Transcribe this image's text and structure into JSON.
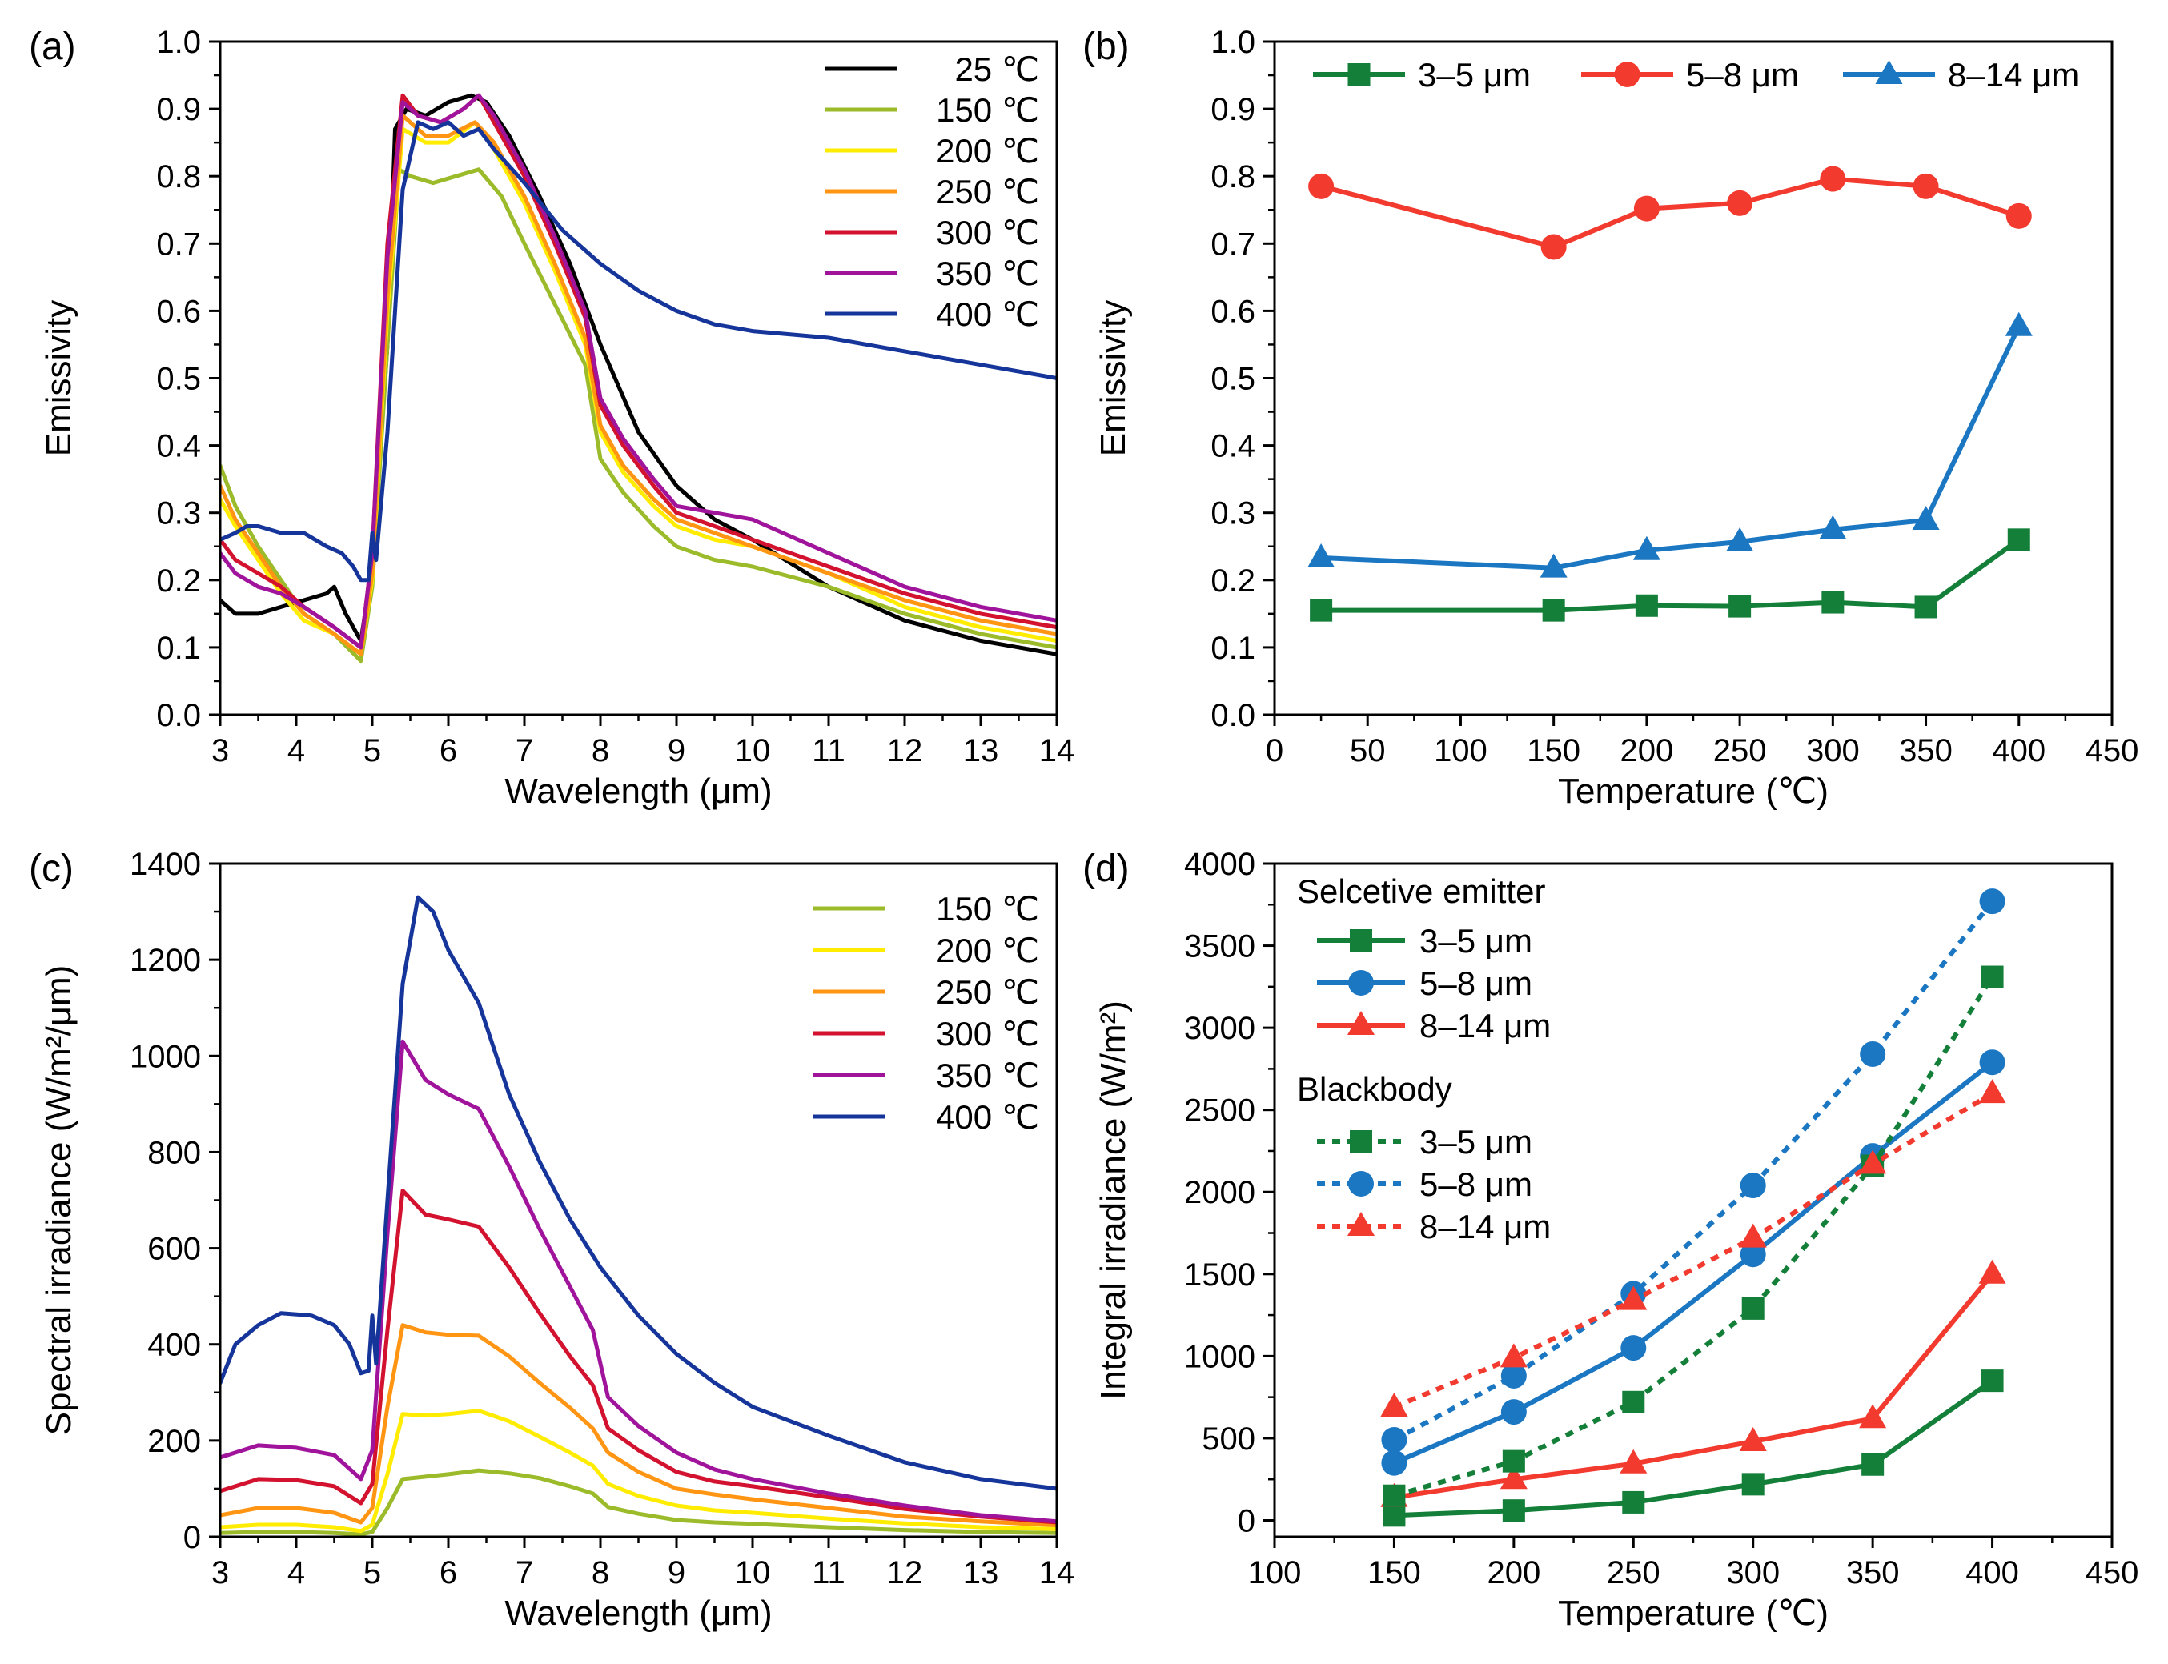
{
  "figure": {
    "panels": [
      "a",
      "b",
      "c",
      "d"
    ]
  },
  "chart_data": [
    {
      "id": "a",
      "panel_label": "(a)",
      "type": "line",
      "title": "",
      "xlabel": "Wavelength (μm)",
      "ylabel": "Emissivity",
      "xlim": [
        3,
        14
      ],
      "ylim": [
        0,
        1.0
      ],
      "xticks": [
        "3",
        "4",
        "5",
        "6",
        "7",
        "8",
        "9",
        "10",
        "11",
        "12",
        "13",
        "14"
      ],
      "yticks": [
        "0.0",
        "0.1",
        "0.2",
        "0.3",
        "0.4",
        "0.5",
        "0.6",
        "0.7",
        "0.8",
        "0.9",
        "1.0"
      ],
      "legend_position": "top-right",
      "series": [
        {
          "name": "25 ℃",
          "color": "#000000",
          "x": [
            3.0,
            3.2,
            3.5,
            3.8,
            4.1,
            4.4,
            4.5,
            4.65,
            4.85,
            5.0,
            5.2,
            5.3,
            5.45,
            5.7,
            6.0,
            6.3,
            6.5,
            6.8,
            7.2,
            7.6,
            8.0,
            8.5,
            9.0,
            9.5,
            10.0,
            11.0,
            12.0,
            13.0,
            14.0
          ],
          "y": [
            0.17,
            0.15,
            0.15,
            0.16,
            0.17,
            0.18,
            0.19,
            0.15,
            0.11,
            0.22,
            0.55,
            0.87,
            0.9,
            0.89,
            0.91,
            0.92,
            0.91,
            0.86,
            0.77,
            0.67,
            0.55,
            0.42,
            0.34,
            0.29,
            0.26,
            0.19,
            0.14,
            0.11,
            0.09
          ]
        },
        {
          "name": "150 ℃",
          "color": "#9cbb2a",
          "x": [
            3.0,
            3.2,
            3.5,
            3.8,
            4.1,
            4.5,
            4.85,
            5.0,
            5.2,
            5.35,
            5.5,
            5.8,
            6.1,
            6.4,
            6.7,
            7.0,
            7.4,
            7.8,
            8.0,
            8.3,
            8.7,
            9.0,
            9.5,
            10.0,
            11.0,
            12.0,
            13.0,
            14.0
          ],
          "y": [
            0.37,
            0.31,
            0.25,
            0.2,
            0.15,
            0.12,
            0.08,
            0.19,
            0.55,
            0.81,
            0.8,
            0.79,
            0.8,
            0.81,
            0.77,
            0.7,
            0.61,
            0.52,
            0.38,
            0.33,
            0.28,
            0.25,
            0.23,
            0.22,
            0.19,
            0.15,
            0.12,
            0.1
          ]
        },
        {
          "name": "200 ℃",
          "color": "#ffec00",
          "x": [
            3.0,
            3.2,
            3.5,
            3.8,
            4.1,
            4.5,
            4.85,
            5.0,
            5.2,
            5.4,
            5.7,
            6.0,
            6.35,
            6.6,
            7.0,
            7.4,
            7.8,
            8.0,
            8.3,
            8.7,
            9.0,
            9.5,
            10.0,
            11.0,
            12.0,
            13.0,
            14.0
          ],
          "y": [
            0.32,
            0.28,
            0.23,
            0.18,
            0.14,
            0.12,
            0.09,
            0.2,
            0.6,
            0.87,
            0.85,
            0.85,
            0.88,
            0.84,
            0.76,
            0.66,
            0.55,
            0.42,
            0.36,
            0.31,
            0.28,
            0.26,
            0.25,
            0.21,
            0.16,
            0.13,
            0.11
          ]
        },
        {
          "name": "250 ℃",
          "color": "#ff9512",
          "x": [
            3.0,
            3.2,
            3.5,
            3.8,
            4.1,
            4.5,
            4.85,
            5.0,
            5.2,
            5.4,
            5.7,
            6.0,
            6.35,
            6.6,
            7.0,
            7.4,
            7.8,
            8.0,
            8.3,
            8.7,
            9.0,
            9.5,
            10.0,
            11.0,
            12.0,
            13.0,
            14.0
          ],
          "y": [
            0.34,
            0.29,
            0.24,
            0.19,
            0.15,
            0.12,
            0.09,
            0.21,
            0.62,
            0.89,
            0.86,
            0.86,
            0.88,
            0.85,
            0.77,
            0.67,
            0.56,
            0.43,
            0.37,
            0.32,
            0.29,
            0.27,
            0.25,
            0.21,
            0.17,
            0.14,
            0.12
          ]
        },
        {
          "name": "300 ℃",
          "color": "#d2122e",
          "x": [
            3.0,
            3.2,
            3.5,
            3.8,
            4.1,
            4.5,
            4.85,
            5.0,
            5.2,
            5.4,
            5.6,
            5.9,
            6.2,
            6.4,
            6.6,
            7.0,
            7.4,
            7.8,
            8.0,
            8.3,
            8.7,
            9.0,
            9.5,
            10.0,
            11.0,
            12.0,
            13.0,
            14.0
          ],
          "y": [
            0.26,
            0.23,
            0.21,
            0.19,
            0.16,
            0.13,
            0.1,
            0.24,
            0.7,
            0.92,
            0.89,
            0.88,
            0.9,
            0.92,
            0.88,
            0.8,
            0.7,
            0.59,
            0.46,
            0.4,
            0.34,
            0.3,
            0.28,
            0.26,
            0.22,
            0.18,
            0.15,
            0.13
          ]
        },
        {
          "name": "350 ℃",
          "color": "#a0149c",
          "x": [
            3.0,
            3.2,
            3.5,
            3.8,
            4.1,
            4.5,
            4.85,
            5.0,
            5.2,
            5.4,
            5.6,
            5.9,
            6.2,
            6.4,
            6.6,
            7.0,
            7.4,
            7.8,
            8.0,
            8.3,
            8.7,
            9.0,
            9.5,
            10.0,
            11.0,
            12.0,
            13.0,
            14.0
          ],
          "y": [
            0.24,
            0.21,
            0.19,
            0.18,
            0.16,
            0.13,
            0.1,
            0.24,
            0.68,
            0.91,
            0.89,
            0.88,
            0.9,
            0.92,
            0.89,
            0.81,
            0.71,
            0.6,
            0.47,
            0.41,
            0.35,
            0.31,
            0.3,
            0.29,
            0.24,
            0.19,
            0.16,
            0.14
          ]
        },
        {
          "name": "400 ℃",
          "color": "#16359a",
          "x": [
            3.0,
            3.2,
            3.35,
            3.5,
            3.8,
            4.1,
            4.4,
            4.6,
            4.75,
            4.85,
            4.95,
            5.0,
            5.05,
            5.2,
            5.4,
            5.6,
            5.8,
            6.0,
            6.2,
            6.4,
            6.6,
            7.0,
            7.5,
            8.0,
            8.5,
            9.0,
            9.5,
            10.0,
            11.0,
            12.0,
            12.5,
            13.0,
            13.5,
            14.0
          ],
          "y": [
            0.26,
            0.27,
            0.28,
            0.28,
            0.27,
            0.27,
            0.25,
            0.24,
            0.22,
            0.2,
            0.2,
            0.27,
            0.23,
            0.42,
            0.78,
            0.88,
            0.87,
            0.88,
            0.86,
            0.87,
            0.84,
            0.79,
            0.72,
            0.67,
            0.63,
            0.6,
            0.58,
            0.57,
            0.56,
            0.54,
            0.53,
            0.52,
            0.51,
            0.5
          ]
        }
      ]
    },
    {
      "id": "b",
      "panel_label": "(b)",
      "type": "line",
      "title": "",
      "xlabel": "Temperature (℃)",
      "ylabel": "Emissivity",
      "xlim": [
        0,
        450
      ],
      "ylim": [
        0,
        1.0
      ],
      "xticks": [
        "0",
        "50",
        "100",
        "150",
        "200",
        "250",
        "300",
        "350",
        "400",
        "450"
      ],
      "yticks": [
        "0.0",
        "0.1",
        "0.2",
        "0.3",
        "0.4",
        "0.5",
        "0.6",
        "0.7",
        "0.8",
        "0.9",
        "1.0"
      ],
      "legend_position": "top (horizontal)",
      "x": [
        25,
        150,
        200,
        250,
        300,
        350,
        400
      ],
      "series": [
        {
          "name": "3–5 μm",
          "color": "#137f38",
          "marker": "square",
          "values": [
            0.155,
            0.155,
            0.162,
            0.161,
            0.167,
            0.16,
            0.26
          ]
        },
        {
          "name": "5–8 μm",
          "color": "#f23a2f",
          "marker": "circle",
          "values": [
            0.785,
            0.695,
            0.752,
            0.76,
            0.796,
            0.785,
            0.741
          ]
        },
        {
          "name": "8–14 μm",
          "color": "#1c77c3",
          "marker": "triangle",
          "values": [
            0.233,
            0.218,
            0.244,
            0.257,
            0.275,
            0.289,
            0.577
          ]
        }
      ]
    },
    {
      "id": "c",
      "panel_label": "(c)",
      "type": "line",
      "title": "",
      "xlabel": "Wavelength (μm)",
      "ylabel": "Spectral irradiance (W/m²/μm)",
      "xlim": [
        3,
        14
      ],
      "ylim": [
        0,
        1400
      ],
      "xticks": [
        "3",
        "4",
        "5",
        "6",
        "7",
        "8",
        "9",
        "10",
        "11",
        "12",
        "13",
        "14"
      ],
      "yticks": [
        "0",
        "200",
        "400",
        "600",
        "800",
        "1000",
        "1200",
        "1400"
      ],
      "legend_position": "top-right",
      "series": [
        {
          "name": "150 ℃",
          "color": "#9cbb2a",
          "x": [
            3.0,
            3.5,
            4.0,
            4.5,
            4.85,
            5.0,
            5.2,
            5.4,
            5.7,
            6.0,
            6.4,
            6.8,
            7.2,
            7.6,
            7.9,
            8.1,
            8.5,
            9.0,
            9.5,
            10.0,
            11.0,
            12.0,
            13.0,
            14.0
          ],
          "y": [
            8,
            10,
            10,
            8,
            5,
            10,
            60,
            120,
            125,
            130,
            138,
            132,
            122,
            105,
            90,
            62,
            48,
            35,
            30,
            27,
            20,
            14,
            10,
            8
          ]
        },
        {
          "name": "200 ℃",
          "color": "#ffec00",
          "x": [
            3.0,
            3.5,
            4.0,
            4.5,
            4.85,
            5.0,
            5.2,
            5.4,
            5.7,
            6.0,
            6.4,
            6.8,
            7.2,
            7.6,
            7.9,
            8.1,
            8.5,
            9.0,
            9.5,
            10.0,
            11.0,
            12.0,
            13.0,
            14.0
          ],
          "y": [
            20,
            25,
            25,
            20,
            12,
            25,
            130,
            255,
            252,
            255,
            262,
            240,
            208,
            175,
            148,
            110,
            85,
            65,
            55,
            50,
            38,
            28,
            20,
            16
          ]
        },
        {
          "name": "250 ℃",
          "color": "#ff9512",
          "x": [
            3.0,
            3.5,
            4.0,
            4.5,
            4.85,
            5.0,
            5.2,
            5.4,
            5.7,
            6.0,
            6.4,
            6.8,
            7.2,
            7.6,
            7.9,
            8.1,
            8.5,
            9.0,
            9.5,
            10.0,
            11.0,
            12.0,
            13.0,
            14.0
          ],
          "y": [
            45,
            60,
            60,
            50,
            30,
            60,
            270,
            440,
            425,
            420,
            418,
            375,
            320,
            268,
            225,
            175,
            135,
            100,
            88,
            78,
            60,
            42,
            32,
            24
          ]
        },
        {
          "name": "300 ℃",
          "color": "#d2122e",
          "x": [
            3.0,
            3.5,
            4.0,
            4.5,
            4.85,
            5.0,
            5.2,
            5.4,
            5.7,
            6.0,
            6.4,
            6.8,
            7.2,
            7.6,
            7.9,
            8.1,
            8.5,
            9.0,
            9.5,
            10.0,
            11.0,
            12.0,
            13.0,
            14.0
          ],
          "y": [
            95,
            120,
            118,
            105,
            70,
            110,
            430,
            720,
            670,
            660,
            645,
            560,
            465,
            375,
            315,
            225,
            180,
            135,
            115,
            105,
            82,
            58,
            42,
            30
          ]
        },
        {
          "name": "350 ℃",
          "color": "#a0149c",
          "x": [
            3.0,
            3.5,
            4.0,
            4.5,
            4.85,
            5.0,
            5.2,
            5.4,
            5.7,
            6.0,
            6.4,
            6.8,
            7.2,
            7.6,
            7.9,
            8.1,
            8.5,
            9.0,
            9.5,
            10.0,
            11.0,
            12.0,
            13.0,
            14.0
          ],
          "y": [
            165,
            190,
            185,
            170,
            120,
            180,
            630,
            1030,
            950,
            920,
            890,
            770,
            640,
            520,
            430,
            290,
            230,
            175,
            140,
            120,
            90,
            65,
            45,
            32
          ]
        },
        {
          "name": "400 ℃",
          "color": "#16359a",
          "x": [
            3.0,
            3.2,
            3.5,
            3.8,
            4.2,
            4.5,
            4.7,
            4.85,
            4.95,
            5.0,
            5.05,
            5.2,
            5.4,
            5.6,
            5.8,
            6.0,
            6.4,
            6.8,
            7.2,
            7.6,
            8.0,
            8.5,
            9.0,
            9.5,
            10.0,
            11.0,
            12.0,
            13.0,
            14.0
          ],
          "y": [
            320,
            400,
            440,
            465,
            460,
            440,
            400,
            340,
            345,
            460,
            360,
            700,
            1150,
            1330,
            1300,
            1220,
            1110,
            920,
            780,
            660,
            560,
            460,
            380,
            320,
            270,
            210,
            155,
            120,
            100
          ]
        }
      ]
    },
    {
      "id": "d",
      "panel_label": "(d)",
      "type": "line",
      "title": "",
      "xlabel": "Temperature (℃)",
      "ylabel": "Integral irradiance (W/m²)",
      "xlim": [
        100,
        450
      ],
      "ylim": [
        -100,
        4000
      ],
      "xticks": [
        "100",
        "150",
        "200",
        "250",
        "300",
        "350",
        "400",
        "450"
      ],
      "yticks": [
        "0",
        "500",
        "1000",
        "1500",
        "2000",
        "2500",
        "3000",
        "3500",
        "4000"
      ],
      "legend_position": "top-left",
      "legend_groups": [
        "Selcetive emitter",
        "Blackbody"
      ],
      "x": [
        150,
        200,
        250,
        300,
        350,
        400
      ],
      "series": [
        {
          "name": "3–5 μm",
          "group": "Selcetive emitter",
          "color": "#137f38",
          "marker": "square",
          "dash": "solid",
          "values": [
            30,
            60,
            110,
            220,
            340,
            850
          ]
        },
        {
          "name": "5–8 μm",
          "group": "Selcetive emitter",
          "color": "#1c77c3",
          "marker": "circle",
          "dash": "solid",
          "values": [
            350,
            660,
            1050,
            1620,
            2220,
            2790
          ]
        },
        {
          "name": "8–14 μm",
          "group": "Selcetive emitter",
          "color": "#f23a2f",
          "marker": "triangle",
          "dash": "solid",
          "values": [
            140,
            250,
            345,
            480,
            620,
            1500
          ]
        },
        {
          "name": "3–5 μm",
          "group": "Blackbody",
          "color": "#137f38",
          "marker": "square",
          "dash": "dotted",
          "values": [
            150,
            360,
            720,
            1290,
            2160,
            3310
          ]
        },
        {
          "name": "5–8 μm",
          "group": "Blackbody",
          "color": "#1c77c3",
          "marker": "circle",
          "dash": "dotted",
          "values": [
            490,
            880,
            1380,
            2040,
            2840,
            3770
          ]
        },
        {
          "name": "8–14 μm",
          "group": "Blackbody",
          "color": "#f23a2f",
          "marker": "triangle",
          "dash": "dotted",
          "values": [
            690,
            990,
            1340,
            1720,
            2170,
            2600
          ]
        }
      ]
    }
  ]
}
